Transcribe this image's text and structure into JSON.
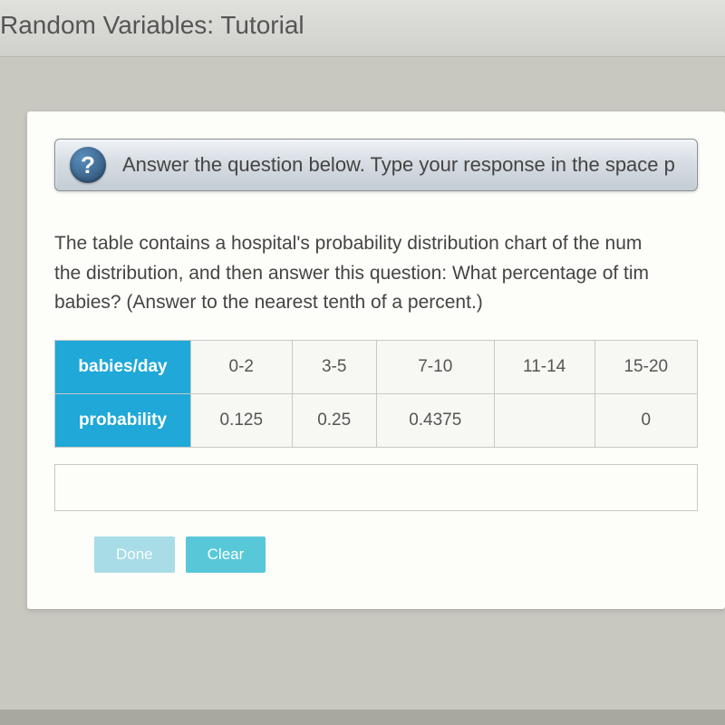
{
  "page": {
    "title": "Random Variables: Tutorial"
  },
  "help_bar": {
    "icon_char": "?",
    "text": "Answer the question below. Type your response in the space p"
  },
  "question": {
    "line1": "The table contains a hospital's probability distribution chart of the num",
    "line2": "the distribution, and then answer this question: What percentage of tim",
    "line3": "babies? (Answer to the nearest tenth of a percent.)"
  },
  "table": {
    "row_headers": [
      "babies/day",
      "probability"
    ],
    "columns": [
      "0-2",
      "3-5",
      "7-10",
      "11-14",
      "15-20"
    ],
    "values": [
      "0.125",
      "0.25",
      "0.4375",
      "",
      "0"
    ],
    "header_bg": "#1fa8d8",
    "header_fg": "#ffffff",
    "cell_bg": "#f7f7f3",
    "cell_fg": "#555555",
    "border_color": "#c8c8c4"
  },
  "buttons": {
    "done": "Done",
    "clear": "Clear"
  },
  "colors": {
    "body_bg": "#a8a8a0",
    "card_bg": "#fdfdf9",
    "btn_done_bg": "#a8dce6",
    "btn_clear_bg": "#58c8d8"
  },
  "typography": {
    "title_fontsize": 28,
    "body_fontsize": 21,
    "table_fontsize": 19
  }
}
